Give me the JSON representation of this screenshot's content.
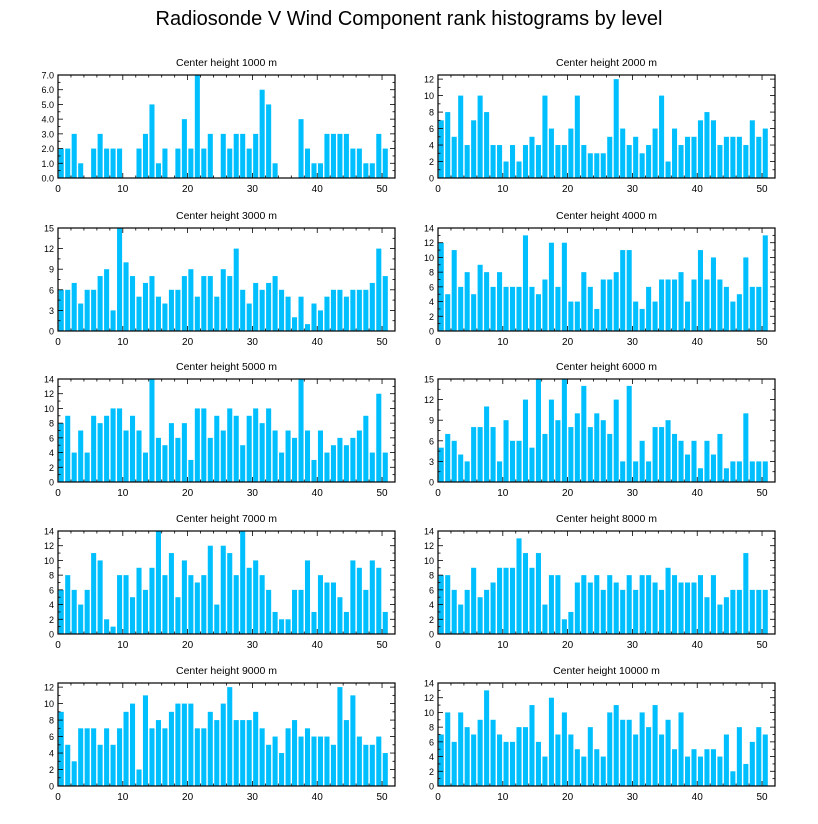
{
  "title": "Radiosonde V Wind Component rank histograms by level",
  "bar_color": "#00BFFF",
  "chart_data": [
    {
      "type": "bar",
      "title": "Center height 1000 m",
      "xlim": [
        0,
        52
      ],
      "ylim": [
        0,
        7
      ],
      "xticks": [
        0,
        10,
        20,
        30,
        40,
        50
      ],
      "yticks": [
        0,
        1,
        2,
        3,
        4,
        5,
        6,
        7
      ],
      "ytick_labels": [
        "0.0",
        "1.0",
        "2.0",
        "3.0",
        "4.0",
        "5.0",
        "6.0",
        "7.0"
      ],
      "values": [
        2,
        2,
        3,
        1,
        0,
        2,
        3,
        2,
        2,
        2,
        0,
        0,
        2,
        3,
        5,
        1,
        2,
        0,
        2,
        4,
        2,
        7,
        2,
        3,
        0,
        3,
        2,
        3,
        3,
        2,
        3,
        6,
        5,
        1,
        0,
        0,
        0,
        4,
        2,
        1,
        1,
        3,
        3,
        3,
        3,
        2,
        2,
        1,
        1,
        3,
        2
      ]
    },
    {
      "type": "bar",
      "title": "Center height 2000 m",
      "xlim": [
        0,
        52
      ],
      "ylim": [
        0,
        12.5
      ],
      "xticks": [
        0,
        10,
        20,
        30,
        40,
        50
      ],
      "yticks": [
        0,
        2,
        4,
        6,
        8,
        10,
        12
      ],
      "ytick_labels": [
        "0",
        "2",
        "4",
        "6",
        "8",
        "10",
        "12"
      ],
      "values": [
        7,
        8,
        5,
        10,
        4,
        7,
        10,
        8,
        4,
        4,
        2,
        4,
        2,
        4,
        5,
        4,
        10,
        6,
        4,
        4,
        6,
        10,
        4,
        3,
        3,
        3,
        5,
        12,
        6,
        4,
        5,
        3,
        4,
        6,
        10,
        2,
        6,
        4,
        5,
        5,
        7,
        8,
        7,
        4,
        5,
        5,
        5,
        4,
        7,
        5,
        6
      ]
    },
    {
      "type": "bar",
      "title": "Center height 3000 m",
      "xlim": [
        0,
        52
      ],
      "ylim": [
        0,
        15
      ],
      "xticks": [
        0,
        10,
        20,
        30,
        40,
        50
      ],
      "yticks": [
        0,
        3,
        6,
        9,
        12,
        15
      ],
      "ytick_labels": [
        "0",
        "3",
        "6",
        "9",
        "12",
        "15"
      ],
      "values": [
        6,
        6,
        7,
        4,
        6,
        6,
        8,
        9,
        3,
        15,
        10,
        8,
        5,
        7,
        8,
        5,
        4,
        6,
        6,
        8,
        9,
        5,
        8,
        8,
        5,
        9,
        8,
        12,
        6,
        4,
        7,
        6,
        7,
        8,
        6,
        5,
        2,
        5,
        1,
        4,
        3,
        5,
        6,
        6,
        5,
        6,
        6,
        6,
        7,
        12,
        8
      ]
    },
    {
      "type": "bar",
      "title": "Center height 4000 m",
      "xlim": [
        0,
        52
      ],
      "ylim": [
        0,
        14
      ],
      "xticks": [
        0,
        10,
        20,
        30,
        40,
        50
      ],
      "yticks": [
        0,
        2,
        4,
        6,
        8,
        10,
        12,
        14
      ],
      "ytick_labels": [
        "0",
        "2",
        "4",
        "6",
        "8",
        "10",
        "12",
        "14"
      ],
      "values": [
        12,
        5,
        11,
        6,
        8,
        5,
        9,
        8,
        6,
        8,
        6,
        6,
        6,
        13,
        6,
        5,
        7,
        12,
        6,
        12,
        4,
        4,
        8,
        6,
        3,
        7,
        7,
        8,
        11,
        11,
        4,
        3,
        6,
        4,
        7,
        7,
        7,
        8,
        4,
        7,
        11,
        7,
        10,
        7,
        6,
        4,
        5,
        10,
        6,
        6,
        13
      ]
    },
    {
      "type": "bar",
      "title": "Center height 5000 m",
      "xlim": [
        0,
        52
      ],
      "ylim": [
        0,
        14
      ],
      "xticks": [
        0,
        10,
        20,
        30,
        40,
        50
      ],
      "yticks": [
        0,
        2,
        4,
        6,
        8,
        10,
        12,
        14
      ],
      "ytick_labels": [
        "0",
        "2",
        "4",
        "6",
        "8",
        "10",
        "12",
        "14"
      ],
      "values": [
        8,
        9,
        4,
        7,
        4,
        9,
        8,
        9,
        10,
        10,
        7,
        9,
        7,
        4,
        14,
        6,
        5,
        8,
        6,
        8,
        3,
        10,
        10,
        6,
        9,
        7,
        10,
        9,
        5,
        9,
        10,
        8,
        10,
        7,
        4,
        7,
        6,
        14,
        7,
        3,
        7,
        4,
        5,
        6,
        5,
        6,
        7,
        9,
        4,
        12,
        4
      ]
    },
    {
      "type": "bar",
      "title": "Center height 6000 m",
      "xlim": [
        0,
        52
      ],
      "ylim": [
        0,
        15
      ],
      "xticks": [
        0,
        10,
        20,
        30,
        40,
        50
      ],
      "yticks": [
        0,
        3,
        6,
        9,
        12,
        15
      ],
      "ytick_labels": [
        "0",
        "3",
        "6",
        "9",
        "12",
        "15"
      ],
      "values": [
        5,
        7,
        6,
        4,
        3,
        8,
        8,
        11,
        8,
        3,
        9,
        6,
        6,
        12,
        5,
        15,
        7,
        12,
        9,
        15,
        8,
        10,
        14,
        8,
        10,
        9,
        7,
        12,
        3,
        14,
        3,
        6,
        3,
        8,
        8,
        9,
        7,
        6,
        4,
        6,
        2,
        6,
        4,
        7,
        2,
        3,
        3,
        10,
        3,
        3,
        3
      ]
    },
    {
      "type": "bar",
      "title": "Center height 7000 m",
      "xlim": [
        0,
        52
      ],
      "ylim": [
        0,
        14
      ],
      "xticks": [
        0,
        10,
        20,
        30,
        40,
        50
      ],
      "yticks": [
        0,
        2,
        4,
        6,
        8,
        10,
        12,
        14
      ],
      "ytick_labels": [
        "0",
        "2",
        "4",
        "6",
        "8",
        "10",
        "12",
        "14"
      ],
      "values": [
        6,
        8,
        6,
        4,
        6,
        11,
        10,
        2,
        1,
        8,
        8,
        5,
        9,
        6,
        9,
        14,
        8,
        11,
        5,
        10,
        8,
        7,
        8,
        12,
        4,
        12,
        11,
        8,
        14,
        9,
        10,
        8,
        6,
        3,
        2,
        2,
        6,
        6,
        10,
        3,
        8,
        7,
        7,
        5,
        3,
        10,
        9,
        6,
        10,
        9,
        3
      ]
    },
    {
      "type": "bar",
      "title": "Center height 8000 m",
      "xlim": [
        0,
        52
      ],
      "ylim": [
        0,
        14
      ],
      "xticks": [
        0,
        10,
        20,
        30,
        40,
        50
      ],
      "yticks": [
        0,
        2,
        4,
        6,
        8,
        10,
        12,
        14
      ],
      "ytick_labels": [
        "0",
        "2",
        "4",
        "6",
        "8",
        "10",
        "12",
        "14"
      ],
      "values": [
        8,
        8,
        6,
        4,
        6,
        9,
        5,
        6,
        7,
        9,
        9,
        9,
        13,
        11,
        9,
        11,
        4,
        8,
        8,
        2,
        3,
        7,
        8,
        7,
        8,
        6,
        8,
        7,
        6,
        8,
        6,
        8,
        8,
        7,
        6,
        9,
        8,
        7,
        7,
        7,
        8,
        5,
        8,
        4,
        5,
        6,
        6,
        11,
        6,
        6,
        6
      ]
    },
    {
      "type": "bar",
      "title": "Center height 9000 m",
      "xlim": [
        0,
        52
      ],
      "ylim": [
        0,
        12.5
      ],
      "xticks": [
        0,
        10,
        20,
        30,
        40,
        50
      ],
      "yticks": [
        0,
        2,
        4,
        6,
        8,
        10,
        12
      ],
      "ytick_labels": [
        "0",
        "2",
        "4",
        "6",
        "8",
        "10",
        "12"
      ],
      "values": [
        9,
        5,
        3,
        7,
        7,
        7,
        5,
        7,
        5,
        7,
        9,
        10,
        2,
        11,
        7,
        8,
        7,
        9,
        10,
        10,
        10,
        7,
        7,
        9,
        8,
        10,
        12,
        8,
        8,
        8,
        9,
        7,
        5,
        6,
        4,
        7,
        8,
        6,
        7,
        6,
        6,
        6,
        5,
        12,
        8,
        11,
        6,
        5,
        5,
        6,
        4
      ]
    },
    {
      "type": "bar",
      "title": "Center height 10000 m",
      "xlim": [
        0,
        52
      ],
      "ylim": [
        0,
        14
      ],
      "xticks": [
        0,
        10,
        20,
        30,
        40,
        50
      ],
      "yticks": [
        0,
        2,
        4,
        6,
        8,
        10,
        12,
        14
      ],
      "ytick_labels": [
        "0",
        "2",
        "4",
        "6",
        "8",
        "10",
        "12",
        "14"
      ],
      "values": [
        7,
        10,
        6,
        10,
        8,
        7,
        9,
        13,
        9,
        7,
        6,
        6,
        8,
        8,
        11,
        6,
        4,
        12,
        7,
        10,
        7,
        5,
        4,
        8,
        5,
        4,
        10,
        11,
        9,
        9,
        7,
        10,
        8,
        11,
        7,
        9,
        5,
        10,
        4,
        5,
        4,
        5,
        5,
        4,
        7,
        2,
        8,
        3,
        6,
        8,
        7
      ]
    }
  ]
}
